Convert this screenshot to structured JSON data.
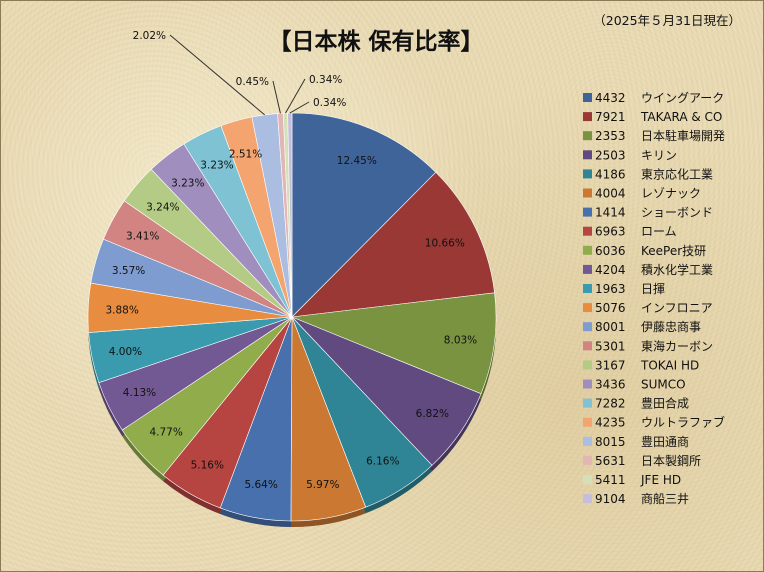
{
  "chart_data": {
    "type": "pie",
    "title": "【日本株 保有比率】",
    "date_note": "（2025年５月31日現在）",
    "legend_position": "right",
    "slices": [
      {
        "code": "4432",
        "name": "ウイングアーク",
        "value": 12.45,
        "label": "12.45%",
        "color": "#3f649a"
      },
      {
        "code": "7921",
        "name": "TAKARA & CO",
        "value": 10.66,
        "label": "10.66%",
        "color": "#9a3836"
      },
      {
        "code": "2353",
        "name": "日本駐車場開発",
        "value": 8.03,
        "label": "8.03%",
        "color": "#7a9340"
      },
      {
        "code": "2503",
        "name": "キリン",
        "value": 6.82,
        "label": "6.82%",
        "color": "#614a80"
      },
      {
        "code": "4186",
        "name": "東京応化工業",
        "value": 6.16,
        "label": "6.16%",
        "color": "#2f8596"
      },
      {
        "code": "4004",
        "name": "レゾナック",
        "value": 5.97,
        "label": "5.97%",
        "color": "#cb7832"
      },
      {
        "code": "1414",
        "name": "ショーボンド",
        "value": 5.64,
        "label": "5.64%",
        "color": "#4770ad"
      },
      {
        "code": "6963",
        "name": "ローム",
        "value": 5.16,
        "label": "5.16%",
        "color": "#b64441"
      },
      {
        "code": "6036",
        "name": "KeePer技研",
        "value": 4.77,
        "label": "4.77%",
        "color": "#91ad4b"
      },
      {
        "code": "4204",
        "name": "積水化学工業",
        "value": 4.13,
        "label": "4.13%",
        "color": "#735994"
      },
      {
        "code": "1963",
        "name": "日揮",
        "value": 4.0,
        "label": "4.00%",
        "color": "#399bad"
      },
      {
        "code": "5076",
        "name": "インフロニア",
        "value": 3.88,
        "label": "3.88%",
        "color": "#e88c3f"
      },
      {
        "code": "8001",
        "name": "伊藤忠商事",
        "value": 3.57,
        "label": "3.57%",
        "color": "#7f9cd0"
      },
      {
        "code": "5301",
        "name": "東海カーボン",
        "value": 3.41,
        "label": "3.41%",
        "color": "#d28482"
      },
      {
        "code": "3167",
        "name": "TOKAI HD",
        "value": 3.24,
        "label": "3.24%",
        "color": "#b3cb84"
      },
      {
        "code": "3436",
        "name": "SUMCO",
        "value": 3.23,
        "label": "3.23%",
        "color": "#a08ebe"
      },
      {
        "code": "7282",
        "name": "豊田合成",
        "value": 3.23,
        "label": "3.23%",
        "color": "#7fc2d3"
      },
      {
        "code": "4235",
        "name": "ウルトラファブ",
        "value": 2.51,
        "label": "2.51%",
        "color": "#f4a46e"
      },
      {
        "code": "8015",
        "name": "豊田通商",
        "value": 2.02,
        "label": "2.02%",
        "color": "#abbde0"
      },
      {
        "code": "5631",
        "name": "日本製鋼所",
        "value": 0.45,
        "label": "0.45%",
        "color": "#e2b6b4"
      },
      {
        "code": "5411",
        "name": "JFE HD",
        "value": 0.34,
        "label": "0.34%",
        "color": "#d3e0b8"
      },
      {
        "code": "9104",
        "name": "商船三井",
        "value": 0.34,
        "label": "0.34%",
        "color": "#c6bcdb"
      }
    ]
  }
}
